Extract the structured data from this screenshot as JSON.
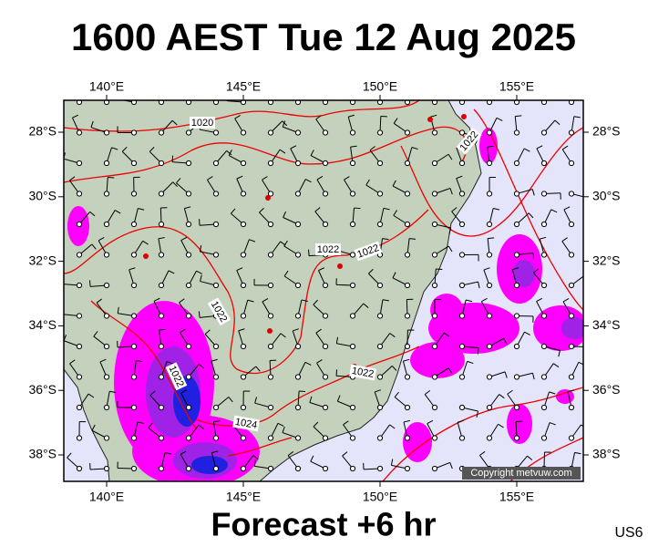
{
  "title": "1600 AEST Tue 12 Aug 2025",
  "footer": "Forecast +6 hr",
  "code": "US6",
  "copyright": "Copyright metvuw.com",
  "longitude_labels": [
    "140°E",
    "145°E",
    "150°E",
    "155°E"
  ],
  "latitude_labels": [
    "28°S",
    "30°S",
    "32°S",
    "34°S",
    "36°S",
    "38°S"
  ],
  "isobar_labels": [
    "1020",
    "1022",
    "1022",
    "1022",
    "1022",
    "1022",
    "1024",
    "1022"
  ]
}
